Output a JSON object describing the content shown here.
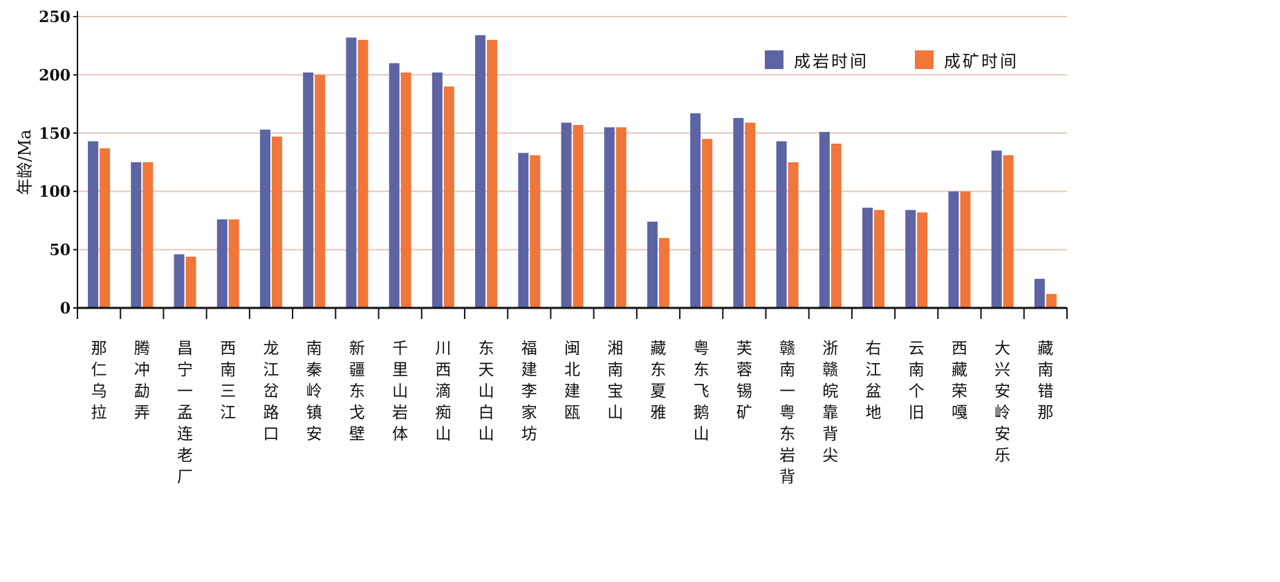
{
  "chart_data": {
    "type": "bar",
    "ylabel": "年龄/Ma",
    "ylim": [
      0,
      250
    ],
    "yticks": [
      0,
      50,
      100,
      150,
      200,
      250
    ],
    "grid": true,
    "legend_position": "top-right",
    "categories": [
      "那仁乌拉",
      "腾冲勐弄",
      "昌宁一孟连老厂",
      "西南三江",
      "龙江岔路口",
      "南秦岭镇安",
      "新疆东戈壁",
      "千里山岩体",
      "川西滴痴山",
      "东天山白山",
      "福建李家坊",
      "闽北建瓯",
      "湘南宝山",
      "藏东夏雅",
      "粤东飞鹅山",
      "芙蓉锡矿",
      "赣南一粤东岩背",
      "浙赣皖靠背尖",
      "右江盆地",
      "云南个旧",
      "西藏荣嘎",
      "大兴安岭安乐",
      "藏南错那"
    ],
    "series": [
      {
        "name": "成岩时间",
        "color": "#5d64a4",
        "values": [
          143,
          125,
          46,
          76,
          153,
          202,
          232,
          210,
          202,
          234,
          133,
          159,
          155,
          74,
          167,
          163,
          143,
          151,
          86,
          84,
          100,
          135,
          25
        ]
      },
      {
        "name": "成矿时间",
        "color": "#f0763a",
        "values": [
          137,
          125,
          44,
          76,
          147,
          200,
          230,
          202,
          190,
          230,
          131,
          157,
          155,
          60,
          145,
          159,
          125,
          141,
          84,
          82,
          100,
          131,
          12
        ]
      }
    ]
  }
}
